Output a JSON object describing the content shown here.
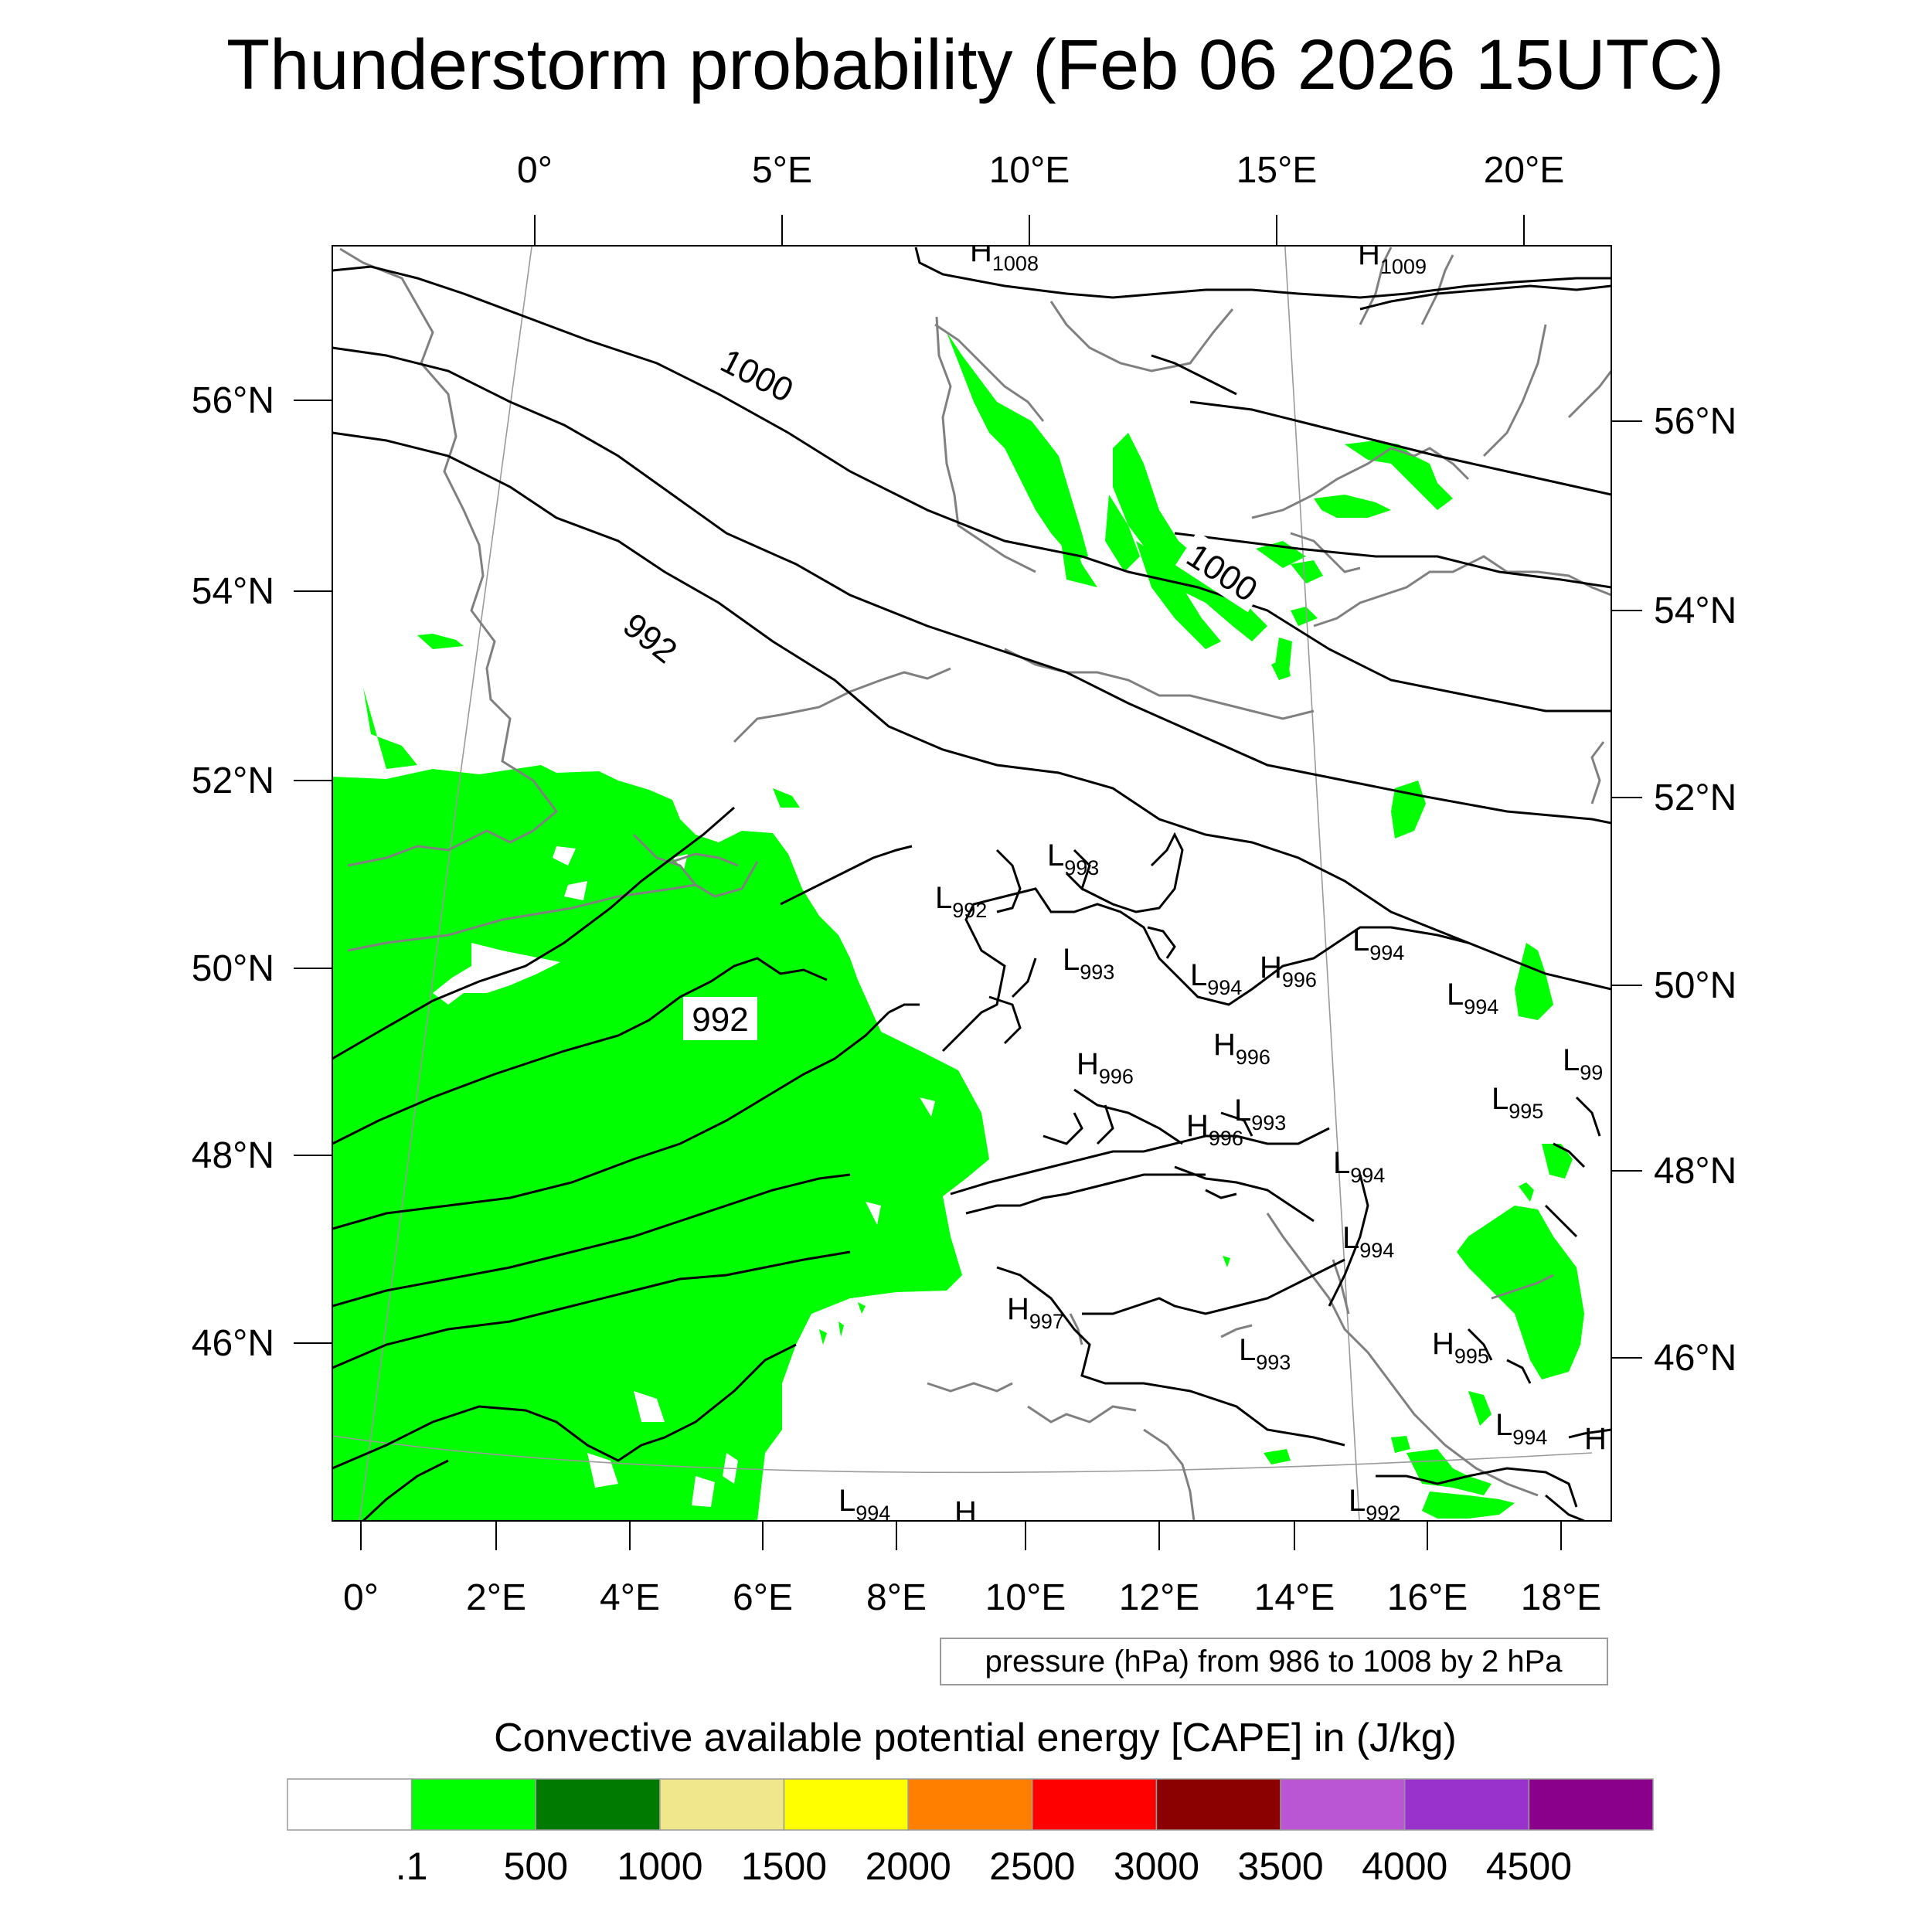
{
  "title": "Thunderstorm probability (Feb 06 2026 15UTC)",
  "top_lon_labels": [
    "0°",
    "5°E",
    "10°E",
    "15°E",
    "20°E"
  ],
  "bottom_lon_labels": [
    "0°",
    "2°E",
    "4°E",
    "6°E",
    "8°E",
    "10°E",
    "12°E",
    "14°E",
    "16°E",
    "18°E"
  ],
  "left_lat_labels": [
    "56°N",
    "54°N",
    "52°N",
    "50°N",
    "48°N",
    "46°N"
  ],
  "right_lat_labels": [
    "56°N",
    "54°N",
    "52°N",
    "50°N",
    "48°N",
    "46°N"
  ],
  "isobar_labels": [
    "1000",
    "1000",
    "992",
    "992"
  ],
  "pressure_centers": [
    {
      "type": "H",
      "value": "1008"
    },
    {
      "type": "H",
      "value": "1009"
    },
    {
      "type": "L",
      "value": "993"
    },
    {
      "type": "L",
      "value": "992"
    },
    {
      "type": "L",
      "value": "993"
    },
    {
      "type": "L",
      "value": "994"
    },
    {
      "type": "H",
      "value": "996"
    },
    {
      "type": "L",
      "value": "994"
    },
    {
      "type": "L",
      "value": "994"
    },
    {
      "type": "H",
      "value": "996"
    },
    {
      "type": "H",
      "value": "996"
    },
    {
      "type": "L",
      "value": "99"
    },
    {
      "type": "L",
      "value": "993"
    },
    {
      "type": "H",
      "value": "996"
    },
    {
      "type": "L",
      "value": "995"
    },
    {
      "type": "L",
      "value": "994"
    },
    {
      "type": "L",
      "value": "994"
    },
    {
      "type": "H",
      "value": "997"
    },
    {
      "type": "L",
      "value": "993"
    },
    {
      "type": "H",
      "value": "995"
    },
    {
      "type": "L",
      "value": "994"
    },
    {
      "type": "H",
      "value": ""
    },
    {
      "type": "L",
      "value": "994"
    },
    {
      "type": "H",
      "value": ""
    },
    {
      "type": "L",
      "value": "992"
    }
  ],
  "contour_info": "pressure (hPa) from 986 to 1008 by 2 hPa",
  "colorbar_title": "Convective available potential energy [CAPE] in (J/kg)",
  "colorbar_colors": [
    "#ffffff",
    "#00ff00",
    "#007a00",
    "#f0e68c",
    "#ffff00",
    "#ff8000",
    "#ff0000",
    "#8b0000",
    "#ba55d3",
    "#9932cc",
    "#8b008b"
  ],
  "colorbar_labels": [
    ".1",
    "500",
    "1000",
    "1500",
    "2000",
    "2500",
    "3000",
    "3500",
    "4000",
    "4500"
  ],
  "field_color": "#00ff00",
  "coast_color": "#808080"
}
